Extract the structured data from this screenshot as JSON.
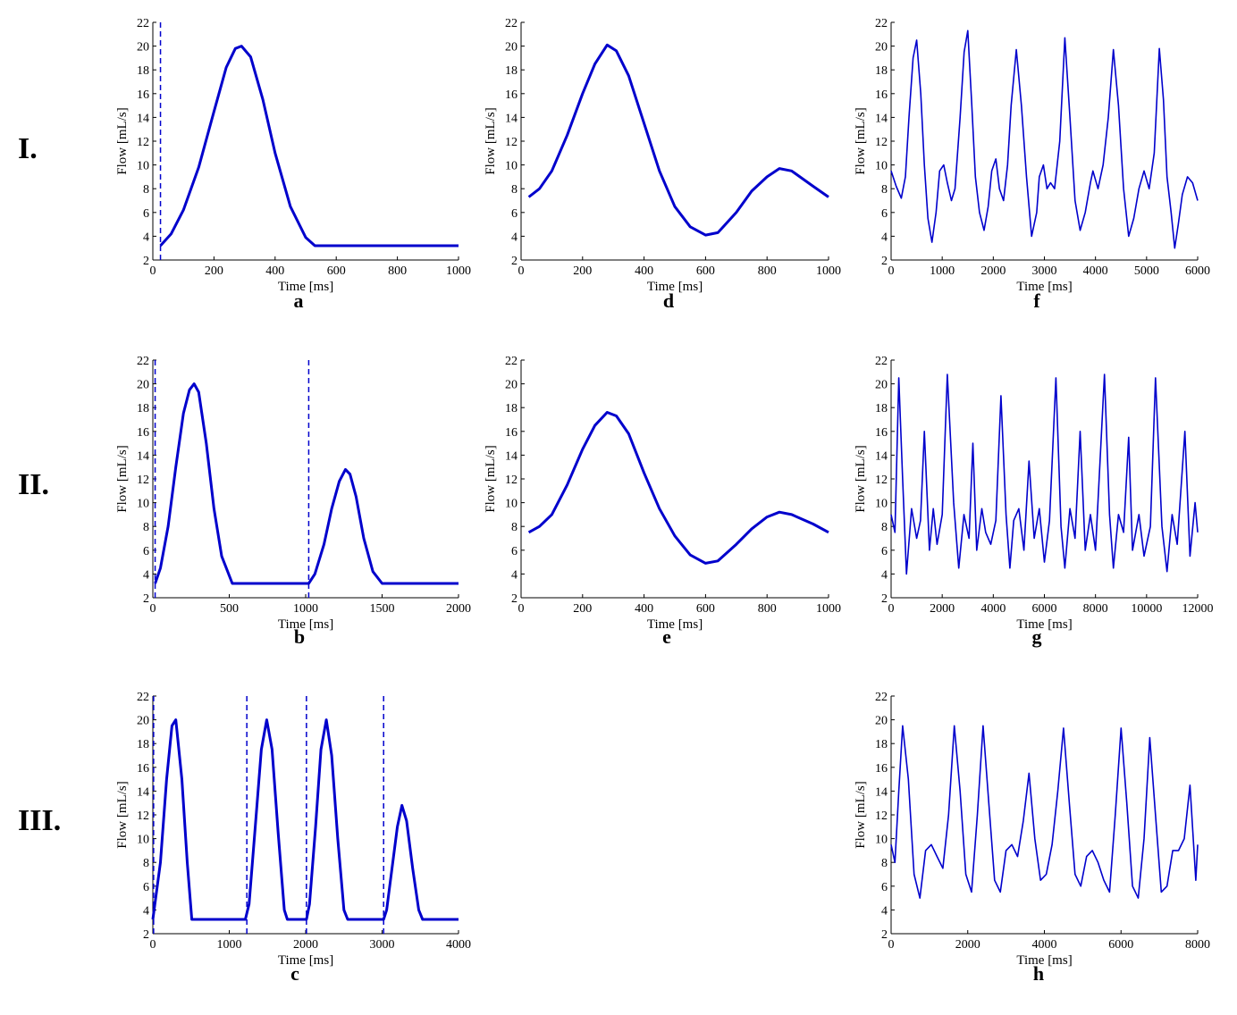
{
  "row_labels": [
    "I.",
    "II.",
    "III."
  ],
  "chart_data": [
    {
      "id": "a",
      "type": "line",
      "panel_label": "a",
      "xlabel": "Time [ms]",
      "ylabel": "Flow [mL/s]",
      "xlim": [
        0,
        1000
      ],
      "ylim": [
        2,
        22
      ],
      "xticks": [
        0,
        200,
        400,
        600,
        800,
        1000
      ],
      "yticks": [
        2,
        4,
        6,
        8,
        10,
        12,
        14,
        16,
        18,
        20,
        22
      ],
      "series": [
        {
          "color": "#0000cc",
          "style": "thick",
          "x": [
            25,
            60,
            100,
            150,
            200,
            240,
            270,
            290,
            320,
            360,
            400,
            450,
            500,
            530,
            600,
            700,
            800,
            900,
            1000
          ],
          "y": [
            3.2,
            4.2,
            6.2,
            9.8,
            14.5,
            18.2,
            19.8,
            20.0,
            19.1,
            15.5,
            11.0,
            6.5,
            3.9,
            3.2,
            3.2,
            3.2,
            3.2,
            3.2,
            3.2
          ]
        }
      ],
      "vlines": [
        25
      ]
    },
    {
      "id": "d",
      "type": "line",
      "panel_label": "d",
      "xlabel": "Time [ms]",
      "ylabel": "Flow [mL/s]",
      "xlim": [
        0,
        1000
      ],
      "ylim": [
        2,
        22
      ],
      "xticks": [
        0,
        200,
        400,
        600,
        800,
        1000
      ],
      "yticks": [
        2,
        4,
        6,
        8,
        10,
        12,
        14,
        16,
        18,
        20,
        22
      ],
      "series": [
        {
          "color": "#0000cc",
          "style": "thick",
          "x": [
            25,
            60,
            100,
            150,
            200,
            240,
            280,
            310,
            350,
            400,
            450,
            500,
            550,
            600,
            640,
            700,
            750,
            800,
            840,
            880,
            950,
            1000
          ],
          "y": [
            7.3,
            8.0,
            9.5,
            12.5,
            16.0,
            18.5,
            20.1,
            19.6,
            17.5,
            13.5,
            9.5,
            6.5,
            4.8,
            4.1,
            4.3,
            6.0,
            7.8,
            9.0,
            9.7,
            9.5,
            8.2,
            7.3
          ]
        }
      ],
      "vlines": []
    },
    {
      "id": "f",
      "type": "line",
      "panel_label": "f",
      "xlabel": "Time [ms]",
      "ylabel": "Flow [mL/s]",
      "xlim": [
        0,
        6000
      ],
      "ylim": [
        2,
        22
      ],
      "xticks": [
        0,
        1000,
        2000,
        3000,
        4000,
        5000,
        6000
      ],
      "yticks": [
        2,
        4,
        6,
        8,
        10,
        12,
        14,
        16,
        18,
        20,
        22
      ],
      "series": [
        {
          "color": "#0000cc",
          "style": "thin",
          "x": [
            0,
            100,
            200,
            280,
            350,
            430,
            500,
            580,
            650,
            720,
            800,
            880,
            950,
            1030,
            1100,
            1180,
            1250,
            1350,
            1430,
            1500,
            1580,
            1650,
            1730,
            1820,
            1900,
            1970,
            2050,
            2120,
            2200,
            2280,
            2350,
            2450,
            2550,
            2650,
            2750,
            2850,
            2900,
            2980,
            3050,
            3120,
            3200,
            3300,
            3400,
            3500,
            3600,
            3700,
            3800,
            3900,
            3950,
            4050,
            4150,
            4250,
            4350,
            4450,
            4550,
            4650,
            4750,
            4850,
            4950,
            5050,
            5150,
            5250,
            5330,
            5400,
            5480,
            5550,
            5620,
            5700,
            5800,
            5900,
            6000
          ],
          "y": [
            9.5,
            8.2,
            7.2,
            9.0,
            14.0,
            19.0,
            20.5,
            16.0,
            10.0,
            5.5,
            3.5,
            6.0,
            9.5,
            10.0,
            8.5,
            7.0,
            8.0,
            14.0,
            19.5,
            21.3,
            15.0,
            9.0,
            6.0,
            4.5,
            6.5,
            9.5,
            10.5,
            8.0,
            7.0,
            10.0,
            15.0,
            19.7,
            15.0,
            9.0,
            4.0,
            6.0,
            9.0,
            10.0,
            8.0,
            8.5,
            8.0,
            12.0,
            20.7,
            14.0,
            7.0,
            4.5,
            6.0,
            8.5,
            9.5,
            8.0,
            10.0,
            14.0,
            19.7,
            15.0,
            8.0,
            4.0,
            5.5,
            8.0,
            9.5,
            8.0,
            11.0,
            19.8,
            15.5,
            9.0,
            6.0,
            3.0,
            5.0,
            7.5,
            9.0,
            8.5,
            7.0
          ]
        }
      ],
      "vlines": []
    },
    {
      "id": "b",
      "type": "line",
      "panel_label": "b",
      "xlabel": "Time [ms]",
      "ylabel": "Flow [mL/s]",
      "xlim": [
        0,
        2000
      ],
      "ylim": [
        2,
        22
      ],
      "xticks": [
        0,
        500,
        1000,
        1500,
        2000
      ],
      "yticks": [
        2,
        4,
        6,
        8,
        10,
        12,
        14,
        16,
        18,
        20,
        22
      ],
      "series": [
        {
          "color": "#0000cc",
          "style": "thick",
          "x": [
            15,
            50,
            100,
            150,
            200,
            240,
            270,
            300,
            350,
            400,
            450,
            520,
            600,
            800,
            1000,
            1020,
            1060,
            1120,
            1170,
            1220,
            1260,
            1290,
            1330,
            1380,
            1440,
            1500,
            1520,
            1700,
            1900,
            2000
          ],
          "y": [
            3.2,
            4.5,
            8.0,
            13.0,
            17.5,
            19.5,
            20.0,
            19.3,
            15.0,
            9.5,
            5.5,
            3.2,
            3.2,
            3.2,
            3.2,
            3.2,
            4.0,
            6.5,
            9.5,
            11.8,
            12.8,
            12.4,
            10.5,
            7.0,
            4.2,
            3.2,
            3.2,
            3.2,
            3.2,
            3.2
          ]
        }
      ],
      "vlines": [
        15,
        1020
      ]
    },
    {
      "id": "e",
      "type": "line",
      "panel_label": "e",
      "xlabel": "Time [ms]",
      "ylabel": "Flow [mL/s]",
      "xlim": [
        0,
        1000
      ],
      "ylim": [
        2,
        22
      ],
      "xticks": [
        0,
        200,
        400,
        600,
        800,
        1000
      ],
      "yticks": [
        2,
        4,
        6,
        8,
        10,
        12,
        14,
        16,
        18,
        20,
        22
      ],
      "series": [
        {
          "color": "#0000cc",
          "style": "thick",
          "x": [
            25,
            60,
            100,
            150,
            200,
            240,
            280,
            310,
            350,
            400,
            450,
            500,
            550,
            600,
            640,
            700,
            750,
            800,
            840,
            880,
            950,
            1000
          ],
          "y": [
            7.5,
            8.0,
            9.0,
            11.5,
            14.5,
            16.5,
            17.6,
            17.3,
            15.8,
            12.5,
            9.5,
            7.2,
            5.6,
            4.9,
            5.1,
            6.5,
            7.8,
            8.8,
            9.2,
            9.0,
            8.2,
            7.5
          ]
        }
      ],
      "vlines": []
    },
    {
      "id": "g",
      "type": "line",
      "panel_label": "g",
      "xlabel": "Time [ms]",
      "ylabel": "Flow [mL/s]",
      "xlim": [
        0,
        12000
      ],
      "ylim": [
        2,
        22
      ],
      "xticks": [
        0,
        2000,
        4000,
        6000,
        8000,
        10000,
        12000
      ],
      "yticks": [
        2,
        4,
        6,
        8,
        10,
        12,
        14,
        16,
        18,
        20,
        22
      ],
      "series": [
        {
          "color": "#0000cc",
          "style": "thin",
          "x": [
            0,
            150,
            300,
            450,
            600,
            800,
            1000,
            1150,
            1300,
            1500,
            1650,
            1800,
            2000,
            2200,
            2450,
            2650,
            2850,
            3050,
            3200,
            3350,
            3550,
            3700,
            3900,
            4100,
            4300,
            4500,
            4650,
            4800,
            5000,
            5200,
            5400,
            5600,
            5800,
            6000,
            6200,
            6450,
            6650,
            6800,
            7000,
            7200,
            7400,
            7600,
            7800,
            8000,
            8350,
            8550,
            8700,
            8900,
            9100,
            9300,
            9450,
            9700,
            9900,
            10150,
            10350,
            10600,
            10800,
            11000,
            11200,
            11500,
            11700,
            11900,
            12000
          ],
          "y": [
            9.0,
            7.5,
            20.5,
            12.0,
            4.0,
            9.5,
            7.0,
            8.5,
            16.0,
            6.0,
            9.5,
            6.5,
            9.0,
            20.8,
            10.0,
            4.5,
            9.0,
            7.0,
            15.0,
            6.0,
            9.5,
            7.5,
            6.5,
            8.5,
            19.0,
            9.0,
            4.5,
            8.5,
            9.5,
            6.0,
            13.5,
            7.0,
            9.5,
            5.0,
            8.5,
            20.5,
            8.0,
            4.5,
            9.5,
            7.0,
            16.0,
            6.0,
            9.0,
            6.0,
            20.8,
            9.0,
            4.5,
            9.0,
            7.5,
            15.5,
            6.0,
            9.0,
            5.5,
            8.0,
            20.5,
            8.0,
            4.2,
            9.0,
            6.5,
            16.0,
            5.5,
            10.0,
            7.5
          ]
        }
      ],
      "vlines": []
    },
    {
      "id": "c",
      "type": "line",
      "panel_label": "c",
      "xlabel": "Time [ms]",
      "ylabel": "Flow [mL/s]",
      "xlim": [
        0,
        4000
      ],
      "ylim": [
        2,
        22
      ],
      "xticks": [
        0,
        1000,
        2000,
        3000,
        4000
      ],
      "yticks": [
        2,
        4,
        6,
        8,
        10,
        12,
        14,
        16,
        18,
        20,
        22
      ],
      "series": [
        {
          "color": "#0000cc",
          "style": "thick",
          "x": [
            0,
            100,
            180,
            250,
            300,
            380,
            450,
            510,
            800,
            1210,
            1260,
            1340,
            1420,
            1490,
            1560,
            1640,
            1720,
            1760,
            2010,
            2050,
            2130,
            2200,
            2270,
            2340,
            2420,
            2500,
            2550,
            3020,
            3060,
            3130,
            3200,
            3260,
            3320,
            3400,
            3480,
            3530,
            3800,
            4000
          ],
          "y": [
            3.2,
            8.0,
            15.0,
            19.5,
            20.0,
            15.0,
            8.0,
            3.2,
            3.2,
            3.2,
            4.5,
            11.0,
            17.5,
            20.0,
            17.5,
            10.5,
            4.0,
            3.2,
            3.2,
            4.5,
            11.0,
            17.5,
            20.0,
            17.0,
            10.0,
            4.0,
            3.2,
            3.2,
            4.0,
            7.5,
            11.0,
            12.8,
            11.5,
            7.5,
            4.0,
            3.2,
            3.2,
            3.2
          ]
        }
      ],
      "vlines": [
        10,
        1230,
        2010,
        3020
      ]
    },
    {
      "id": "h",
      "type": "line",
      "panel_label": "h",
      "xlabel": "Time [ms]",
      "ylabel": "Flow [mL/s]",
      "xlim": [
        0,
        8000
      ],
      "ylim": [
        2,
        22
      ],
      "xticks": [
        0,
        2000,
        4000,
        6000,
        8000
      ],
      "yticks": [
        2,
        4,
        6,
        8,
        10,
        12,
        14,
        16,
        18,
        20,
        22
      ],
      "series": [
        {
          "color": "#0000cc",
          "style": "thin",
          "x": [
            0,
            100,
            200,
            300,
            450,
            600,
            750,
            900,
            1050,
            1200,
            1350,
            1500,
            1650,
            1800,
            1950,
            2100,
            2250,
            2400,
            2550,
            2700,
            2850,
            3000,
            3150,
            3300,
            3450,
            3600,
            3750,
            3900,
            4050,
            4200,
            4350,
            4500,
            4650,
            4800,
            4950,
            5100,
            5250,
            5400,
            5550,
            5700,
            5850,
            6000,
            6150,
            6300,
            6450,
            6600,
            6750,
            6900,
            7050,
            7200,
            7350,
            7500,
            7650,
            7800,
            7950,
            8000
          ],
          "y": [
            9.5,
            8.0,
            14.0,
            19.5,
            15.0,
            7.0,
            5.0,
            9.0,
            9.5,
            8.5,
            7.5,
            12.0,
            19.5,
            14.0,
            7.0,
            5.5,
            12.0,
            19.5,
            13.0,
            6.5,
            5.5,
            9.0,
            9.5,
            8.5,
            11.5,
            15.5,
            10.0,
            6.5,
            7.0,
            9.5,
            14.0,
            19.3,
            13.0,
            7.0,
            6.0,
            8.5,
            9.0,
            8.0,
            6.5,
            5.5,
            12.0,
            19.3,
            13.0,
            6.0,
            5.0,
            10.0,
            18.5,
            12.0,
            5.5,
            6.0,
            9.0,
            9.0,
            10.0,
            14.5,
            6.5,
            9.5
          ]
        }
      ],
      "vlines": []
    }
  ]
}
